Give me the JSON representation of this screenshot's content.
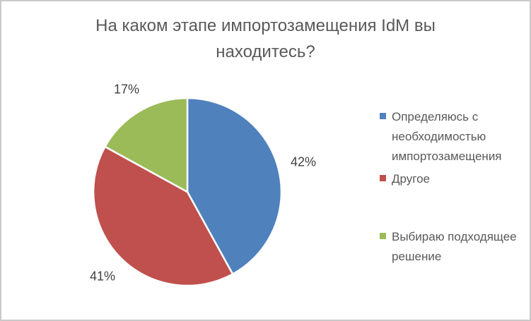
{
  "frame": {
    "background_color": "#ffffff",
    "border_color": "#c9c9c9"
  },
  "chart_data": {
    "type": "pie",
    "title": "На каком этапе импортозамещения IdM вы находитесь?",
    "title_color": "#595959",
    "start_angle_deg": 0,
    "direction": "clockwise",
    "legend_position": "right",
    "data_labels": "outside-percent",
    "data_label_color": "#404040",
    "legend_text_color": "#595959",
    "slice_separator_color": "#ffffff",
    "slices": [
      {
        "label": "Определяюсь с необходимостью импортозамещения",
        "value": 42,
        "percent_label": "42%",
        "color": "#4F81BD"
      },
      {
        "label": "Другое",
        "value": 41,
        "percent_label": "41%",
        "color": "#C0504D"
      },
      {
        "label": "Выбираю подходящее решение",
        "value": 17,
        "percent_label": "17%",
        "color": "#9BBB59"
      }
    ]
  }
}
